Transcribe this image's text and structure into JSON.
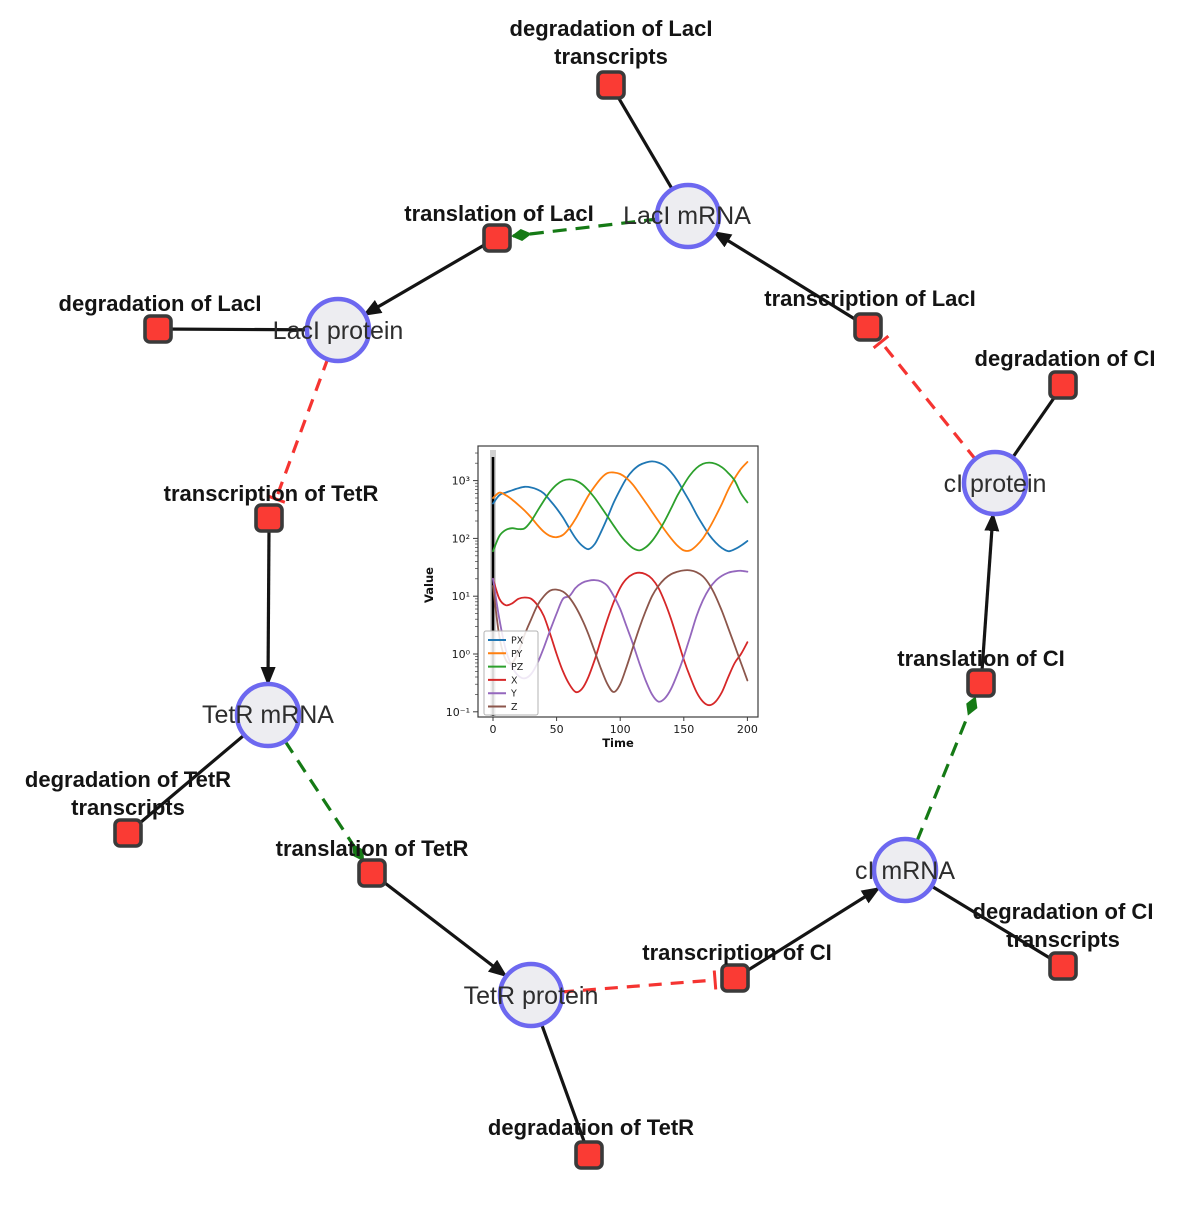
{
  "network": {
    "species": {
      "laci_mrna": {
        "label": "LacI mRNA"
      },
      "laci_protein": {
        "label": "LacI protein"
      },
      "tetr_mrna": {
        "label": "TetR mRNA"
      },
      "tetr_protein": {
        "label": "TetR protein"
      },
      "ci_mrna": {
        "label": "cI mRNA"
      },
      "ci_protein": {
        "label": "cI protein"
      }
    },
    "reactions": {
      "deg_laci_tx": {
        "label": [
          "degradation of LacI",
          "transcripts"
        ]
      },
      "tl_laci": {
        "label": "translation of LacI"
      },
      "deg_laci": {
        "label": "degradation of LacI"
      },
      "tx_laci": {
        "label": "transcription of LacI"
      },
      "deg_ci": {
        "label": "degradation of CI"
      },
      "tx_tetr": {
        "label": "transcription of TetR"
      },
      "deg_tetr_tx": {
        "label": [
          "degradation of TetR",
          "transcripts"
        ]
      },
      "tl_tetr": {
        "label": "translation of TetR"
      },
      "deg_tetr": {
        "label": "degradation of TetR"
      },
      "tx_ci": {
        "label": "transcription of CI"
      },
      "deg_ci_tx": {
        "label": [
          "degradation of CI",
          "transcripts"
        ]
      },
      "tl_ci": {
        "label": "translation of CI"
      }
    },
    "edges": [
      {
        "from": "LacI mRNA",
        "to": "degradation of LacI transcripts",
        "type": "consumption"
      },
      {
        "from": "LacI mRNA",
        "to": "translation of LacI",
        "type": "modifier"
      },
      {
        "from": "translation of LacI",
        "to": "LacI protein",
        "type": "production"
      },
      {
        "from": "LacI protein",
        "to": "degradation of LacI",
        "type": "consumption"
      },
      {
        "from": "LacI protein",
        "to": "transcription of TetR",
        "type": "inhibition"
      },
      {
        "from": "transcription of TetR",
        "to": "TetR mRNA",
        "type": "production"
      },
      {
        "from": "TetR mRNA",
        "to": "degradation of TetR transcripts",
        "type": "consumption"
      },
      {
        "from": "TetR mRNA",
        "to": "translation of TetR",
        "type": "modifier"
      },
      {
        "from": "translation of TetR",
        "to": "TetR protein",
        "type": "production"
      },
      {
        "from": "TetR protein",
        "to": "degradation of TetR",
        "type": "consumption"
      },
      {
        "from": "TetR protein",
        "to": "transcription of CI",
        "type": "inhibition"
      },
      {
        "from": "transcription of CI",
        "to": "cI mRNA",
        "type": "production"
      },
      {
        "from": "cI mRNA",
        "to": "degradation of CI transcripts",
        "type": "consumption"
      },
      {
        "from": "cI mRNA",
        "to": "translation of CI",
        "type": "modifier"
      },
      {
        "from": "translation of CI",
        "to": "cI protein",
        "type": "production"
      },
      {
        "from": "cI protein",
        "to": "degradation of CI",
        "type": "consumption"
      },
      {
        "from": "cI protein",
        "to": "transcription of LacI",
        "type": "inhibition"
      },
      {
        "from": "transcription of LacI",
        "to": "LacI mRNA",
        "type": "production"
      }
    ]
  },
  "colors": {
    "species_fill": "#ededf1",
    "species_border": "#6d68f0",
    "reaction_fill": "#fa3b34",
    "reaction_border": "#3a3a3a",
    "edge_main": "#141414",
    "edge_modifier": "#157a15",
    "edge_inhibition": "#f53431",
    "label_reaction": "#141414",
    "label_species": "#2d2d2d"
  },
  "chart_data": {
    "type": "line",
    "title": "",
    "xlabel": "Time",
    "ylabel": "Value",
    "y_scale": "log",
    "grid": false,
    "legend_position": "lower left",
    "x_ticks": [
      "0",
      "50",
      "100",
      "150",
      "200"
    ],
    "x_tick_values": [
      0,
      50,
      100,
      150,
      200
    ],
    "y_tick_labels": [
      "10⁻¹",
      "10⁰",
      "10¹",
      "10²",
      "10³"
    ],
    "y_tick_values": [
      0.1,
      1,
      10,
      100,
      1000
    ],
    "xlim": [
      -12,
      208
    ],
    "ylim": [
      0.08,
      3500
    ],
    "t0_marker": true,
    "x": [
      0,
      5,
      10,
      15,
      20,
      25,
      30,
      35,
      40,
      45,
      50,
      55,
      60,
      65,
      70,
      75,
      80,
      85,
      90,
      95,
      100,
      105,
      110,
      115,
      120,
      125,
      130,
      135,
      140,
      145,
      150,
      155,
      160,
      165,
      170,
      175,
      180,
      185,
      190,
      195,
      200
    ],
    "series": [
      {
        "name": "PX",
        "color": "#1f77b4",
        "values": [
          400,
          560,
          620,
          680,
          740,
          780,
          760,
          700,
          600,
          450,
          330,
          230,
          150,
          100,
          75,
          65,
          80,
          130,
          230,
          420,
          700,
          1100,
          1500,
          1850,
          2050,
          2150,
          2050,
          1800,
          1400,
          1000,
          650,
          420,
          260,
          170,
          115,
          85,
          68,
          60,
          65,
          75,
          90
        ]
      },
      {
        "name": "PY",
        "color": "#ff7f0e",
        "values": [
          500,
          620,
          560,
          470,
          380,
          300,
          230,
          170,
          130,
          110,
          105,
          115,
          150,
          220,
          350,
          550,
          800,
          1100,
          1350,
          1380,
          1300,
          1100,
          850,
          600,
          420,
          290,
          200,
          140,
          100,
          75,
          62,
          62,
          75,
          100,
          150,
          240,
          400,
          700,
          1100,
          1600,
          2100
        ]
      },
      {
        "name": "PZ",
        "color": "#2ca02c",
        "values": [
          60,
          110,
          140,
          150,
          145,
          150,
          200,
          300,
          450,
          650,
          850,
          1000,
          1050,
          1000,
          870,
          680,
          500,
          350,
          240,
          165,
          115,
          85,
          68,
          62,
          70,
          90,
          130,
          200,
          330,
          550,
          850,
          1250,
          1650,
          1950,
          2050,
          1950,
          1700,
          1350,
          1000,
          600,
          420
        ]
      },
      {
        "name": "X",
        "color": "#d62728",
        "values": [
          20,
          9,
          7,
          7.5,
          9,
          9.5,
          9,
          7,
          4.5,
          2.2,
          1.0,
          0.5,
          0.3,
          0.22,
          0.25,
          0.4,
          0.8,
          1.8,
          4,
          8,
          14,
          20,
          24,
          25.5,
          24,
          20,
          14,
          8,
          4,
          1.8,
          0.8,
          0.4,
          0.22,
          0.15,
          0.13,
          0.15,
          0.22,
          0.4,
          0.7,
          1.0,
          1.6
        ]
      },
      {
        "name": "Y",
        "color": "#9467bd",
        "values": [
          20,
          4,
          1.2,
          0.6,
          0.42,
          0.38,
          0.45,
          0.7,
          1.3,
          2.6,
          5,
          9,
          10,
          14,
          17,
          18.5,
          19,
          18,
          15,
          10,
          6,
          3,
          1.5,
          0.7,
          0.35,
          0.2,
          0.15,
          0.17,
          0.25,
          0.45,
          0.9,
          2,
          4.5,
          8.5,
          13.5,
          18.5,
          22.5,
          25.5,
          27,
          27.5,
          26.5
        ]
      },
      {
        "name": "Z",
        "color": "#8c564b",
        "values": [
          15,
          2,
          0.8,
          0.7,
          1.1,
          2.2,
          4,
          7,
          10,
          12.5,
          13,
          12,
          9.5,
          6.5,
          4,
          2.2,
          1.1,
          0.55,
          0.3,
          0.22,
          0.3,
          0.6,
          1.3,
          2.8,
          5.5,
          10,
          15,
          20,
          24,
          26.5,
          28,
          28,
          26,
          22,
          16,
          10,
          5.5,
          2.8,
          1.4,
          0.7,
          0.35
        ]
      }
    ]
  }
}
